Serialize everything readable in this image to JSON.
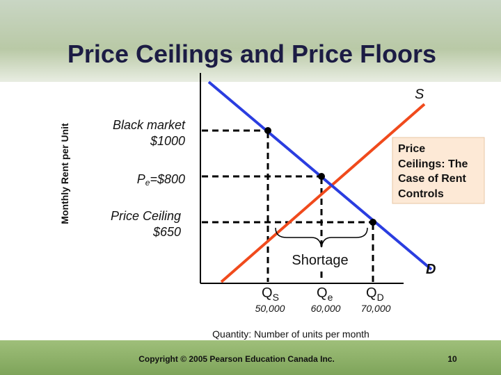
{
  "title": "Price Ceilings and Price Floors",
  "y_axis_label": "Monthly Rent per Unit",
  "x_axis_label": "Quantity: Number of units per month",
  "supply_label": "S",
  "demand_label": "D",
  "black_market": [
    "Black market",
    "$1000"
  ],
  "equilibrium_price": {
    "main": "P",
    "sub": "e",
    "rest": "=$800"
  },
  "price_ceiling": [
    "Price Ceiling",
    "$650"
  ],
  "shortage": "Shortage",
  "quantities": [
    {
      "main": "Q",
      "sub": "S",
      "value": "50,000"
    },
    {
      "main": "Q",
      "sub": "e",
      "value": "60,000"
    },
    {
      "main": "Q",
      "sub": "D",
      "value": "70,000"
    }
  ],
  "note": [
    "Price",
    "Ceilings: The",
    "Case of Rent",
    "Controls"
  ],
  "footer": {
    "copyright": "Copyright © 2005 Pearson Education Canada Inc.",
    "page": "10"
  }
}
